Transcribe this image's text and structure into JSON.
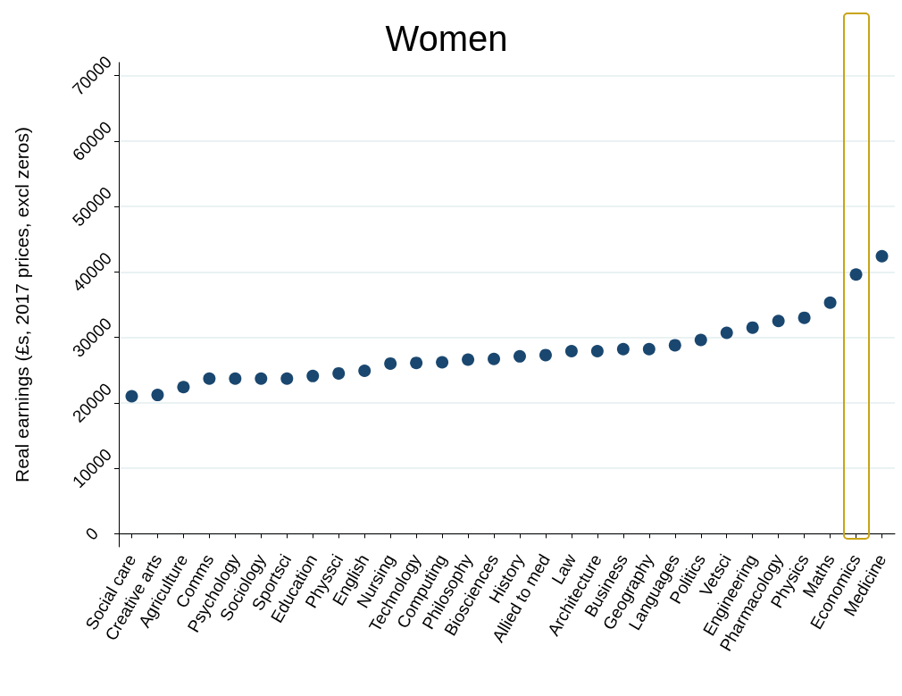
{
  "chart_data": {
    "type": "scatter",
    "title": "Women",
    "ylabel": "Real earnings (£s, 2017 prices, excl zeros)",
    "categories": [
      "Social care",
      "Creative arts",
      "Agriculture",
      "Comms",
      "Psychology",
      "Sociology",
      "Sportsci",
      "Education",
      "Physsci",
      "English",
      "Nursing",
      "Technology",
      "Computing",
      "Philosophy",
      "Biosciences",
      "History",
      "Allied to med",
      "Law",
      "Architecture",
      "Business",
      "Geography",
      "Languages",
      "Politics",
      "Vetsci",
      "Engineering",
      "Pharmacology",
      "Physics",
      "Maths",
      "Economics",
      "Medicine"
    ],
    "series": [
      {
        "color": "#1a476f",
        "values": [
          21000,
          21200,
          22400,
          23700,
          23700,
          23700,
          23700,
          24100,
          24500,
          24900,
          26000,
          26100,
          26200,
          26600,
          26700,
          27100,
          27300,
          27900,
          27900,
          28200,
          28200,
          28800,
          29600,
          30700,
          31500,
          32500,
          33000,
          35300,
          39600,
          42400
        ]
      }
    ],
    "ylim": [
      -2000,
      72000
    ],
    "yticks": [
      0,
      10000,
      20000,
      30000,
      40000,
      50000,
      60000,
      70000
    ],
    "grid": "y",
    "marker": "circle"
  }
}
